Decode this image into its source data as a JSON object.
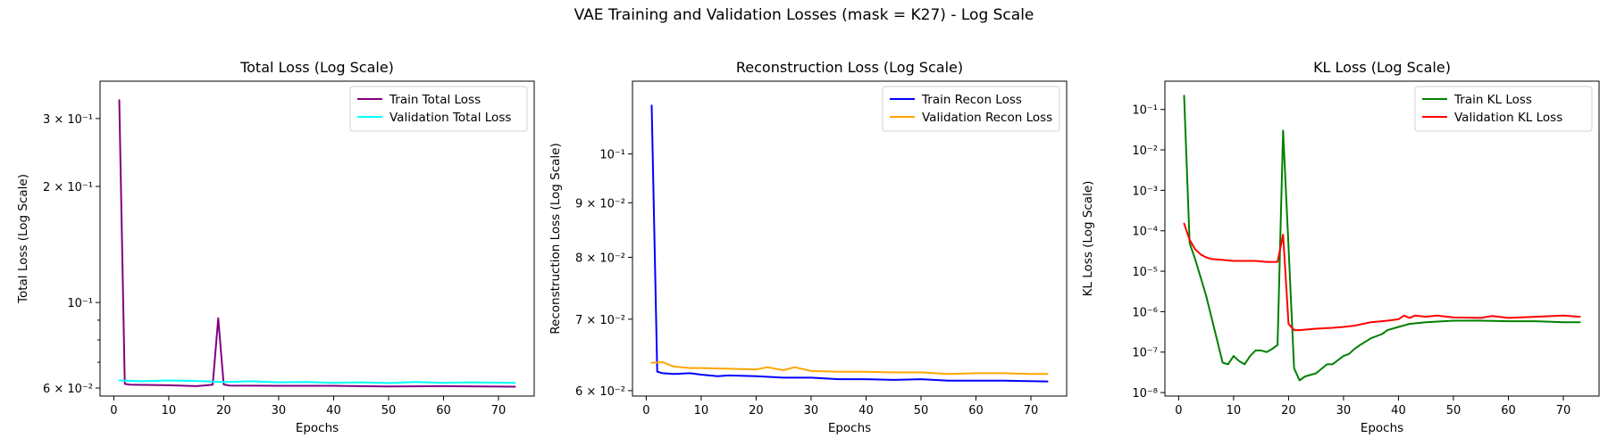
{
  "figure_title": "VAE Training and Validation Losses (mask = K27) - Log Scale",
  "chart_data": [
    {
      "type": "line",
      "title": "Total Loss (Log Scale)",
      "xlabel": "Epochs",
      "ylabel": "Total Loss (Log Scale)",
      "yscale": "log",
      "xlim": [
        -2.5,
        76.5
      ],
      "ylim": [
        0.0572,
        0.375
      ],
      "xticks": [
        0,
        10,
        20,
        30,
        40,
        50,
        60,
        70
      ],
      "yticks": [
        {
          "v": 0.06,
          "label": "6 × 10⁻²"
        },
        {
          "v": 0.1,
          "label": "10⁻¹"
        },
        {
          "v": 0.2,
          "label": "2 × 10⁻¹"
        },
        {
          "v": 0.3,
          "label": "3 × 10⁻¹"
        }
      ],
      "minor_yticks": [
        0.07,
        0.08,
        0.09,
        0.4
      ],
      "legend_position": "top-right",
      "series": [
        {
          "name": "Train Total Loss",
          "color": "#800080",
          "x": [
            1,
            2,
            3,
            10,
            15,
            17,
            18,
            19,
            20,
            21,
            30,
            40,
            50,
            60,
            73
          ],
          "y": [
            0.335,
            0.0615,
            0.0612,
            0.061,
            0.0607,
            0.061,
            0.0612,
            0.091,
            0.0613,
            0.0609,
            0.0608,
            0.0608,
            0.0606,
            0.0607,
            0.0605
          ]
        },
        {
          "name": "Validation Total Loss",
          "color": "#00ffff",
          "x": [
            1,
            5,
            10,
            15,
            20,
            25,
            30,
            35,
            40,
            45,
            50,
            55,
            60,
            65,
            73
          ],
          "y": [
            0.0628,
            0.0625,
            0.0628,
            0.0626,
            0.0622,
            0.0625,
            0.0621,
            0.0622,
            0.0619,
            0.0621,
            0.0618,
            0.0622,
            0.0619,
            0.0621,
            0.0619
          ]
        }
      ]
    },
    {
      "type": "line",
      "title": "Reconstruction Loss (Log Scale)",
      "xlabel": "Epochs",
      "ylabel": "Reconstruction Loss (Log Scale)",
      "yscale": "log",
      "xlim": [
        -2.5,
        76.5
      ],
      "ylim": [
        0.0593,
        0.117
      ],
      "xticks": [
        0,
        10,
        20,
        30,
        40,
        50,
        60,
        70
      ],
      "yticks": [
        {
          "v": 0.06,
          "label": "6 × 10⁻²"
        },
        {
          "v": 0.07,
          "label": "7 × 10⁻²"
        },
        {
          "v": 0.08,
          "label": "8 × 10⁻²"
        },
        {
          "v": 0.09,
          "label": "9 × 10⁻²"
        },
        {
          "v": 0.1,
          "label": "10⁻¹"
        }
      ],
      "minor_yticks": [],
      "legend_position": "top-right",
      "series": [
        {
          "name": "Train Recon Loss",
          "color": "#0000ff",
          "x": [
            1,
            2,
            3,
            5,
            8,
            10,
            13,
            15,
            20,
            25,
            30,
            35,
            40,
            45,
            50,
            55,
            60,
            65,
            73
          ],
          "y": [
            0.111,
            0.0625,
            0.0623,
            0.0622,
            0.0623,
            0.0621,
            0.0619,
            0.062,
            0.0619,
            0.0617,
            0.0617,
            0.0615,
            0.0615,
            0.0614,
            0.0615,
            0.0613,
            0.0613,
            0.0613,
            0.0612
          ]
        },
        {
          "name": "Validation Recon Loss",
          "color": "#ffa500",
          "x": [
            1,
            3,
            5,
            8,
            10,
            15,
            20,
            22,
            25,
            27,
            30,
            35,
            40,
            45,
            50,
            55,
            60,
            65,
            70,
            73
          ],
          "y": [
            0.0637,
            0.0638,
            0.0632,
            0.063,
            0.063,
            0.0629,
            0.0628,
            0.0631,
            0.0627,
            0.0631,
            0.0626,
            0.0625,
            0.0625,
            0.0624,
            0.0624,
            0.0622,
            0.0623,
            0.0623,
            0.0622,
            0.0622
          ]
        }
      ]
    },
    {
      "type": "line",
      "title": "KL Loss (Log Scale)",
      "xlabel": "Epochs",
      "ylabel": "KL Loss (Log Scale)",
      "yscale": "log",
      "xlim": [
        -2.5,
        76.5
      ],
      "ylim": [
        8.2e-09,
        0.5
      ],
      "xticks": [
        0,
        10,
        20,
        30,
        40,
        50,
        60,
        70
      ],
      "yticks": [
        {
          "v": 1e-08,
          "label": "10⁻⁸"
        },
        {
          "v": 1e-07,
          "label": "10⁻⁷"
        },
        {
          "v": 1e-06,
          "label": "10⁻⁶"
        },
        {
          "v": 1e-05,
          "label": "10⁻⁵"
        },
        {
          "v": 0.0001,
          "label": "10⁻⁴"
        },
        {
          "v": 0.001,
          "label": "10⁻³"
        },
        {
          "v": 0.01,
          "label": "10⁻²"
        },
        {
          "v": 0.1,
          "label": "10⁻¹"
        }
      ],
      "minor_yticks": [],
      "legend_position": "top-right",
      "series": [
        {
          "name": "Train KL Loss",
          "color": "#008000",
          "x": [
            1,
            2,
            3,
            5,
            7,
            8,
            9,
            10,
            11,
            12,
            13,
            14,
            15,
            16,
            17,
            18,
            19,
            20,
            21,
            22,
            23,
            25,
            27,
            28,
            30,
            31,
            32,
            33,
            35,
            37,
            38,
            40,
            42,
            45,
            50,
            55,
            60,
            65,
            70,
            73
          ],
          "y": [
            0.22,
            5e-05,
            2e-05,
            2.5e-06,
            2e-07,
            5.5e-08,
            5e-08,
            8e-08,
            6e-08,
            5e-08,
            8e-08,
            1.1e-07,
            1.1e-07,
            1e-07,
            1.2e-07,
            1.5e-07,
            0.03,
            4e-05,
            4e-08,
            2e-08,
            2.5e-08,
            3e-08,
            5e-08,
            5e-08,
            8e-08,
            9e-08,
            1.2e-07,
            1.5e-07,
            2.2e-07,
            2.8e-07,
            3.5e-07,
            4.2e-07,
            5e-07,
            5.5e-07,
            6e-07,
            6e-07,
            5.8e-07,
            5.8e-07,
            5.5e-07,
            5.5e-07
          ]
        },
        {
          "name": "Validation KL Loss",
          "color": "#ff0000",
          "x": [
            1,
            2,
            3,
            4,
            5,
            6,
            8,
            10,
            12,
            14,
            16,
            18,
            19,
            20,
            21,
            22,
            25,
            28,
            30,
            32,
            35,
            38,
            40,
            41,
            42,
            43,
            45,
            47,
            50,
            55,
            57,
            60,
            65,
            70,
            73
          ],
          "y": [
            0.00015,
            6e-05,
            3.5e-05,
            2.6e-05,
            2.2e-05,
            2e-05,
            1.9e-05,
            1.8e-05,
            1.8e-05,
            1.8e-05,
            1.7e-05,
            1.7e-05,
            8e-05,
            5e-07,
            3.5e-07,
            3.5e-07,
            3.8e-07,
            4e-07,
            4.2e-07,
            4.5e-07,
            5.5e-07,
            6e-07,
            6.5e-07,
            8e-07,
            7e-07,
            8e-07,
            7.5e-07,
            8e-07,
            7.2e-07,
            7e-07,
            7.8e-07,
            7e-07,
            7.5e-07,
            8e-07,
            7.5e-07
          ]
        }
      ]
    }
  ]
}
